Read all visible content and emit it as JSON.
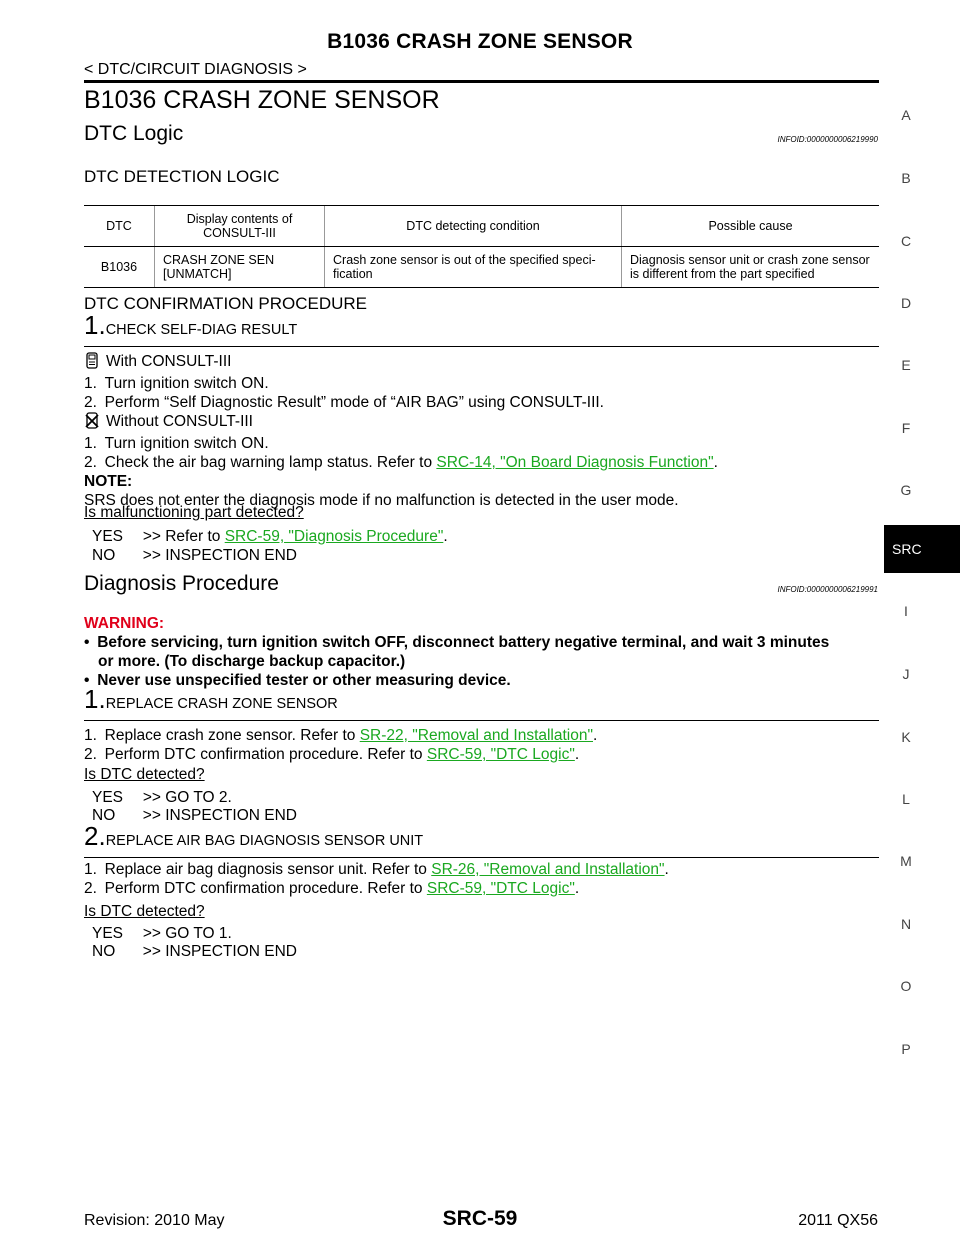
{
  "header": {
    "title": "B1036 CRASH ZONE SENSOR",
    "subtitle": "< DTC/CIRCUIT DIAGNOSIS >"
  },
  "section": {
    "title": "B1036 CRASH ZONE SENSOR",
    "dtc_logic": {
      "heading": "DTC Logic",
      "infoid": "INFOID:0000000006219990",
      "detection_heading": "DTC DETECTION LOGIC",
      "table": {
        "headers": [
          "DTC",
          "Display contents of CONSULT-III",
          "DTC detecting condition",
          "Possible cause"
        ],
        "row": [
          "B1036",
          "CRASH ZONE SEN [UNMATCH]",
          "Crash zone sensor is out of the specified speci- fication",
          "Diagnosis sensor unit or crash zone sensor is different from the part specified"
        ]
      },
      "confirmation_heading": "DTC CONFIRMATION PROCEDURE",
      "step1": {
        "number": "1.",
        "title": "CHECK SELF-DIAG RESULT",
        "with_label": "With CONSULT-III",
        "with_steps": [
          "1. Turn ignition switch ON.",
          "2. Perform “Self Diagnostic Result” mode of “AIR BAG” using CONSULT-III."
        ],
        "without_label": "Without CONSULT-III",
        "without_step1": "1. Turn ignition switch ON.",
        "without_step2_prefix": "2. Check the air bag warning lamp status. Refer to ",
        "without_step2_link": "SRC-14, \"On Board Diagnosis Function\"",
        "without_step2_suffix": ".",
        "note_label": "NOTE:",
        "note_text": "SRS does not enter the diagnosis mode if no malfunction is detected in the user mode.",
        "question": "Is malfunctioning part detected?",
        "yes_prefix": "YES  >> Refer to ",
        "yes_link": "SRC-59, \"Diagnosis Procedure\"",
        "yes_suffix": ".",
        "no_text": "NO   >> INSPECTION END"
      }
    },
    "diagnosis": {
      "heading": "Diagnosis Procedure",
      "infoid": "INFOID:0000000006219991",
      "warning_label": "WARNING:",
      "warnings": [
        "Before servicing, turn ignition switch OFF, disconnect battery negative terminal, and wait 3 minutes",
        "or more. (To discharge backup capacitor.)",
        "Never use unspecified tester or other measuring device."
      ],
      "step1": {
        "number": "1.",
        "title": "REPLACE CRASH ZONE SENSOR",
        "line1_prefix": "1. Replace crash zone sensor. Refer to ",
        "line1_link": "SR-22, \"Removal and Installation\"",
        "line2_prefix": "2. Perform DTC confirmation procedure. Refer to ",
        "line2_link": "SRC-59, \"DTC Logic\"",
        "period": ".",
        "question": "Is DTC detected?",
        "yes": "YES  >> GO TO 2.",
        "no": "NO   >> INSPECTION END"
      },
      "step2": {
        "number": "2.",
        "title": "REPLACE AIR BAG DIAGNOSIS SENSOR UNIT",
        "line1_prefix": "1. Replace air bag diagnosis sensor unit. Refer to ",
        "line1_link": "SR-26, \"Removal and Installation\"",
        "line2_prefix": "2. Perform DTC confirmation procedure. Refer to ",
        "line2_link": "SRC-59, \"DTC Logic\"",
        "period": ".",
        "question": "Is DTC detected?",
        "yes": "YES  >> GO TO 1.",
        "no": "NO   >> INSPECTION END"
      }
    }
  },
  "side_index": [
    "A",
    "B",
    "C",
    "D",
    "E",
    "F",
    "G",
    "SRC",
    "I",
    "J",
    "K",
    "L",
    "M",
    "N",
    "O",
    "P"
  ],
  "side_active": "SRC",
  "footer": {
    "revision": "Revision: 2010 May",
    "page": "SRC-59",
    "model": "2011 QX56"
  },
  "colors": {
    "link": "#1aa820",
    "warning": "#e0001a",
    "text": "#000000"
  },
  "icons": {
    "with_consult": "consult-icon",
    "without_consult": "no-consult-icon"
  }
}
